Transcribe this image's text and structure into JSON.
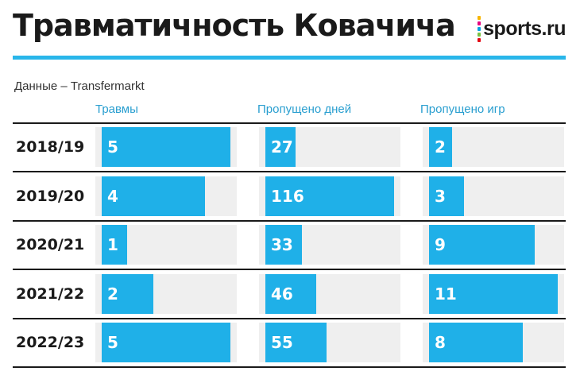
{
  "header": {
    "title": "Травматичность Ковачича",
    "logo_text": "sports.ru",
    "logo_dot_colors": [
      "#f7b500",
      "#e6007e",
      "#00a0e3",
      "#7bc143",
      "#e30613"
    ],
    "accent_color": "#29b6ea"
  },
  "source": "Данные – Transfermarkt",
  "chart_data": {
    "type": "bar",
    "orientation": "horizontal",
    "categories": [
      "2018/19",
      "2019/20",
      "2020/21",
      "2021/22",
      "2022/23"
    ],
    "series": [
      {
        "name": "Травмы",
        "values": [
          5,
          4,
          1,
          2,
          5
        ]
      },
      {
        "name": "Пропущено дней",
        "values": [
          27,
          116,
          33,
          46,
          55
        ]
      },
      {
        "name": "Пропущено игр",
        "values": [
          2,
          3,
          9,
          11,
          8
        ]
      }
    ],
    "bar_color": "#1fb0e8",
    "track_color": "#efefef"
  }
}
